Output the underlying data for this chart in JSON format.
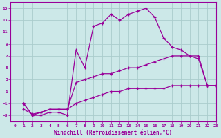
{
  "bg_color": "#cce8e8",
  "line_color": "#990099",
  "grid_color": "#aacccc",
  "xlabel": "Windchill (Refroidissement éolien,°C)",
  "xlim": [
    -0.5,
    23
  ],
  "ylim": [
    -4,
    16
  ],
  "yticks": [
    -3,
    -1,
    1,
    3,
    5,
    7,
    9,
    11,
    13,
    15
  ],
  "xticks": [
    0,
    1,
    2,
    3,
    4,
    5,
    6,
    7,
    8,
    9,
    10,
    11,
    12,
    13,
    14,
    15,
    16,
    17,
    18,
    19,
    20,
    21,
    22,
    23
  ],
  "line1_x": [
    1,
    2,
    3,
    4,
    5,
    6,
    7,
    8,
    9,
    10,
    11,
    12,
    13,
    14,
    15,
    16,
    17,
    18,
    19,
    20,
    21,
    22,
    23
  ],
  "line1_y": [
    -1,
    -3,
    -3,
    -2.5,
    -2.5,
    -3,
    8,
    5,
    12,
    12.5,
    14,
    13,
    14,
    14.5,
    15,
    13.5,
    10,
    8.5,
    8,
    7,
    6.5,
    2,
    2
  ],
  "line2_x": [
    1,
    2,
    3,
    4,
    5,
    6,
    7,
    8,
    9,
    10,
    11,
    12,
    13,
    14,
    15,
    16,
    17,
    18,
    19,
    20,
    21,
    22,
    23
  ],
  "line2_y": [
    -1,
    -3,
    -2.5,
    -2,
    -2,
    -2,
    2.5,
    3,
    3.5,
    4,
    4,
    4.5,
    5,
    5,
    5.5,
    6,
    6.5,
    7,
    7,
    7,
    7,
    2,
    2
  ],
  "line3_x": [
    1,
    2,
    3,
    4,
    5,
    6,
    7,
    8,
    9,
    10,
    11,
    12,
    13,
    14,
    15,
    16,
    17,
    18,
    19,
    20,
    21,
    22,
    23
  ],
  "line3_y": [
    -2,
    -2.8,
    -2.5,
    -2,
    -2,
    -2,
    -1,
    -0.5,
    0,
    0.5,
    1,
    1,
    1.5,
    1.5,
    1.5,
    1.5,
    1.5,
    2,
    2,
    2,
    2,
    2,
    2
  ]
}
